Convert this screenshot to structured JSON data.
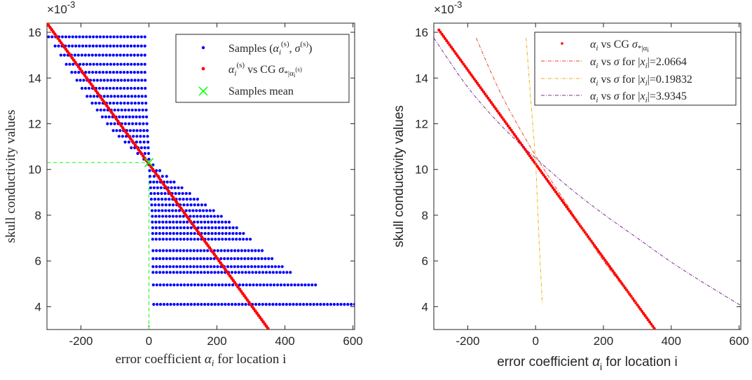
{
  "chart_data": [
    {
      "type": "scatter",
      "xlabel": "error coefficient α_i for location i",
      "ylabel": "skull conductivity values",
      "y_exponent": "×10⁻³",
      "xlim": [
        -300,
        605
      ],
      "ylim": [
        3.0,
        16.4
      ],
      "xticks": [
        -200,
        0,
        200,
        400,
        600
      ],
      "yticks": [
        4,
        6,
        8,
        10,
        12,
        14,
        16
      ],
      "legend_position": "top-right",
      "legend": [
        {
          "label": "Samples (α_i^(s), σ^(s))",
          "marker": "dot",
          "color": "#0000ff"
        },
        {
          "label": "α_i^(s) vs CG σ_*|α_i^(s)",
          "marker": "dot",
          "color": "#ff0000"
        },
        {
          "label": "Samples mean",
          "marker": "x",
          "color": "#00ff00"
        }
      ],
      "samples_mean": {
        "x": 0,
        "y": 10.3
      },
      "cg_line": {
        "x": [
          -300,
          350
        ],
        "y": [
          16.4,
          3.05
        ]
      },
      "sample_rows": [
        {
          "y": 15.8,
          "xmin": -295,
          "xmax": -12
        },
        {
          "y": 15.4,
          "xmin": -276,
          "xmax": -12
        },
        {
          "y": 15.0,
          "xmin": -259,
          "xmax": -12
        },
        {
          "y": 14.6,
          "xmin": -243,
          "xmax": -12
        },
        {
          "y": 14.25,
          "xmin": -227,
          "xmax": -12
        },
        {
          "y": 13.9,
          "xmin": -212,
          "xmax": -11
        },
        {
          "y": 13.55,
          "xmin": -197,
          "xmax": -11
        },
        {
          "y": 13.2,
          "xmin": -182,
          "xmax": -10
        },
        {
          "y": 12.9,
          "xmin": -167,
          "xmax": -9
        },
        {
          "y": 12.6,
          "xmin": -152,
          "xmax": -8
        },
        {
          "y": 12.3,
          "xmin": -137,
          "xmax": -7
        },
        {
          "y": 12.0,
          "xmin": -122,
          "xmax": -6
        },
        {
          "y": 11.7,
          "xmin": -105,
          "xmax": -5
        },
        {
          "y": 11.45,
          "xmin": -88,
          "xmax": -4
        },
        {
          "y": 11.2,
          "xmin": -70,
          "xmax": -3
        },
        {
          "y": 10.95,
          "xmin": -52,
          "xmax": -2
        },
        {
          "y": 10.7,
          "xmin": -33,
          "xmax": -1
        },
        {
          "y": 10.45,
          "xmin": -15,
          "xmax": 0
        },
        {
          "y": 10.2,
          "xmin": 0,
          "xmax": 12
        },
        {
          "y": 9.95,
          "xmin": 2,
          "xmax": 32
        },
        {
          "y": 9.7,
          "xmin": 3,
          "xmax": 52
        },
        {
          "y": 9.45,
          "xmin": 4,
          "xmax": 74
        },
        {
          "y": 9.2,
          "xmin": 5,
          "xmax": 97
        },
        {
          "y": 8.95,
          "xmin": 6,
          "xmax": 120
        },
        {
          "y": 8.7,
          "xmin": 7,
          "xmax": 143
        },
        {
          "y": 8.45,
          "xmin": 8,
          "xmax": 166
        },
        {
          "y": 8.2,
          "xmin": 9,
          "xmax": 190
        },
        {
          "y": 7.95,
          "xmin": 10,
          "xmax": 213
        },
        {
          "y": 7.7,
          "xmin": 10,
          "xmax": 236
        },
        {
          "y": 7.45,
          "xmin": 11,
          "xmax": 258
        },
        {
          "y": 7.2,
          "xmin": 11,
          "xmax": 278
        },
        {
          "y": 6.95,
          "xmin": 11,
          "xmax": 298
        },
        {
          "y": 6.45,
          "xmin": 12,
          "xmax": 333
        },
        {
          "y": 6.1,
          "xmin": 12,
          "xmax": 362
        },
        {
          "y": 5.75,
          "xmin": 12,
          "xmax": 392
        },
        {
          "y": 5.5,
          "xmin": 12,
          "xmax": 416
        },
        {
          "y": 4.95,
          "xmin": 13,
          "xmax": 490
        },
        {
          "y": 4.1,
          "xmin": 14,
          "xmax": 605
        }
      ]
    },
    {
      "type": "line",
      "xlabel": "error coefficient α_i for location i",
      "ylabel": "skull conductivity values",
      "y_exponent": "×10⁻³",
      "xlim": [
        -300,
        605
      ],
      "ylim": [
        3.0,
        16.4
      ],
      "xticks": [
        -200,
        0,
        200,
        400,
        600
      ],
      "yticks": [
        4,
        6,
        8,
        10,
        12,
        14,
        16
      ],
      "legend_position": "top-right",
      "series": [
        {
          "name": "α_i vs CG σ_*|α_i",
          "color": "#ff0000",
          "style": "dots",
          "x": [
            -285,
            350
          ],
          "y": [
            16.1,
            3.05
          ]
        },
        {
          "name": "α_i vs σ for |x_i|=2.0664",
          "color": "#e8482a",
          "style": "dashdot",
          "x": [
            -175,
            -100,
            0,
            100,
            200,
            300
          ],
          "y": [
            15.75,
            13.25,
            10.6,
            8.3,
            6.0,
            4.1
          ]
        },
        {
          "name": "α_i vs σ for |x_i|=0.19832",
          "color": "#edb120",
          "style": "dashdot",
          "x": [
            -28,
            -15,
            0,
            10,
            20
          ],
          "y": [
            15.75,
            13.2,
            10.3,
            7.0,
            4.1
          ]
        },
        {
          "name": "α_i vs σ for |x_i|=3.9345",
          "color": "#7e2f8e",
          "style": "dashdot",
          "x": [
            -300,
            -200,
            -100,
            0,
            100,
            200,
            300,
            400,
            500,
            605
          ],
          "y": [
            15.75,
            13.6,
            11.9,
            10.5,
            9.2,
            8.05,
            7.0,
            5.95,
            5.0,
            4.05
          ]
        }
      ]
    }
  ]
}
